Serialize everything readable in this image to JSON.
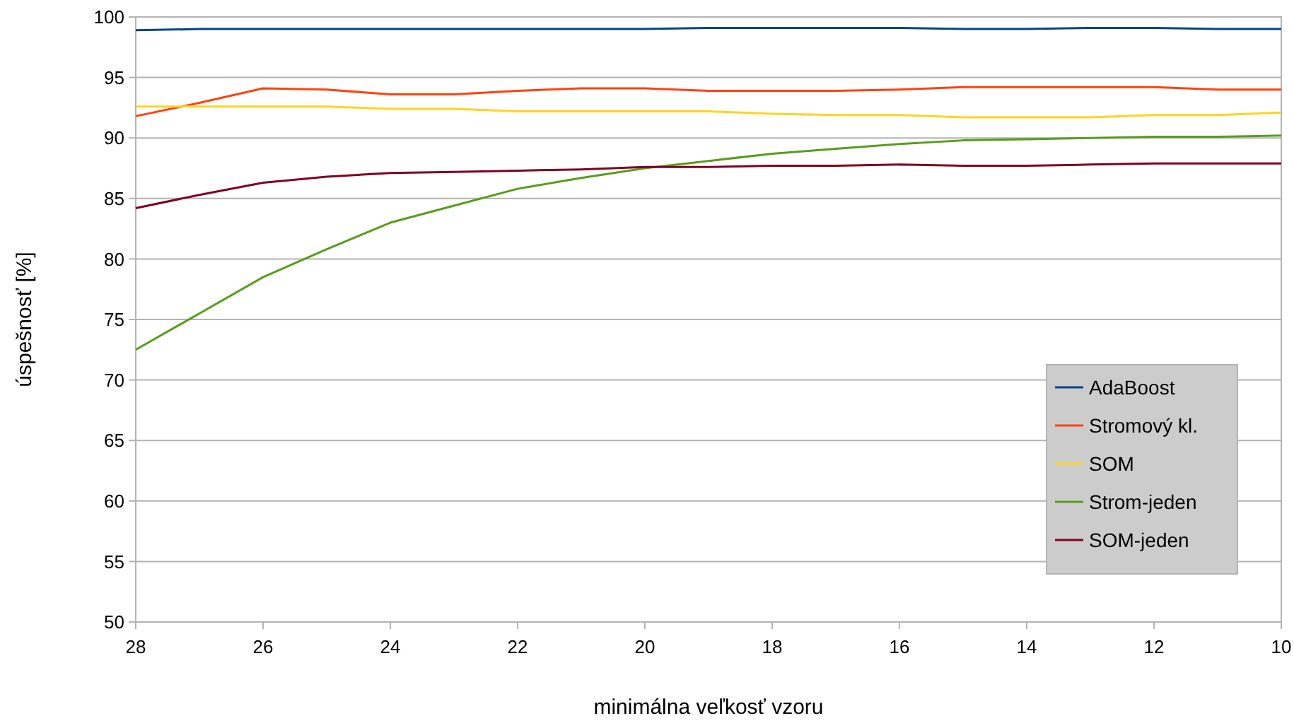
{
  "chart_data": {
    "type": "line",
    "xlabel": "minimálna veľkosť vzoru",
    "ylabel": "úspešnosť [%]",
    "x": [
      28,
      27,
      26,
      25,
      24,
      23,
      22,
      21,
      20,
      19,
      18,
      17,
      16,
      15,
      14,
      13,
      12,
      11,
      10
    ],
    "xlim": [
      28,
      10
    ],
    "xticks": [
      28,
      26,
      24,
      22,
      20,
      18,
      16,
      14,
      12,
      10
    ],
    "ylim": [
      50,
      100
    ],
    "yticks": [
      50,
      55,
      60,
      65,
      70,
      75,
      80,
      85,
      90,
      95,
      100
    ],
    "grid": "y",
    "legend": "bottom right",
    "marker": "none",
    "line_style": "solid",
    "series": [
      {
        "name": "AdaBoost",
        "color": "#004586",
        "values": [
          98.9,
          99.0,
          99.0,
          99.0,
          99.0,
          99.0,
          99.0,
          99.0,
          99.0,
          99.1,
          99.1,
          99.1,
          99.1,
          99.0,
          99.0,
          99.1,
          99.1,
          99.0,
          99.0
        ]
      },
      {
        "name": "Stromový kl.",
        "color": "#ff420e",
        "values": [
          91.8,
          92.9,
          94.1,
          94.0,
          93.6,
          93.6,
          93.9,
          94.1,
          94.1,
          93.9,
          93.9,
          93.9,
          94.0,
          94.2,
          94.2,
          94.2,
          94.2,
          94.0,
          94.0
        ]
      },
      {
        "name": "SOM",
        "color": "#ffd320",
        "values": [
          92.6,
          92.6,
          92.6,
          92.6,
          92.4,
          92.4,
          92.2,
          92.2,
          92.2,
          92.2,
          92.0,
          91.9,
          91.9,
          91.7,
          91.7,
          91.7,
          91.9,
          91.9,
          92.1
        ]
      },
      {
        "name": "Strom-jeden",
        "color": "#579d1c",
        "values": [
          72.5,
          75.5,
          78.5,
          80.8,
          83.0,
          84.4,
          85.8,
          86.7,
          87.5,
          88.1,
          88.7,
          89.1,
          89.5,
          89.8,
          89.9,
          90.0,
          90.1,
          90.1,
          90.2
        ]
      },
      {
        "name": "SOM-jeden",
        "color": "#7e0021",
        "values": [
          84.2,
          85.3,
          86.3,
          86.8,
          87.1,
          87.2,
          87.3,
          87.4,
          87.6,
          87.6,
          87.7,
          87.7,
          87.8,
          87.7,
          87.7,
          87.8,
          87.9,
          87.9,
          87.9
        ]
      }
    ]
  }
}
